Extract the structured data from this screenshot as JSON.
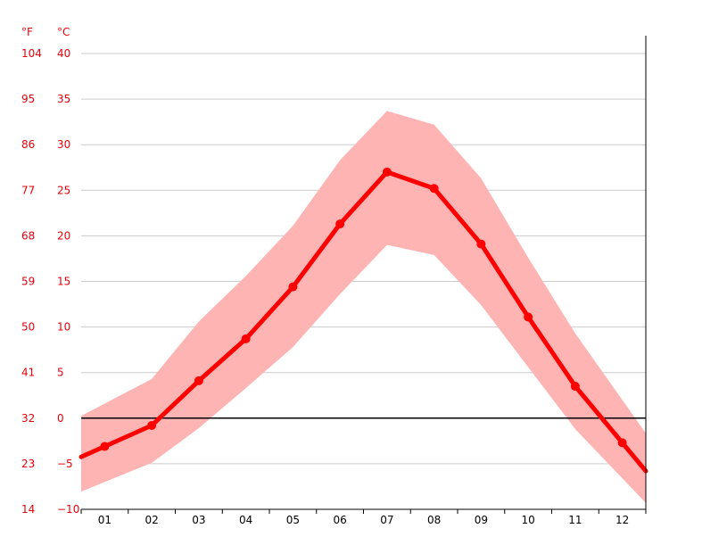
{
  "colors": {
    "line": "#ff0000",
    "band": "#ffb4b4",
    "grid": "#cccccc",
    "zero_line": "#000000",
    "axis_label": "#e8000b"
  },
  "chart_data": {
    "type": "line",
    "unit_labels": {
      "fahrenheit": "°F",
      "celsius": "°C"
    },
    "categories": [
      "01",
      "02",
      "03",
      "04",
      "05",
      "06",
      "07",
      "08",
      "09",
      "10",
      "11",
      "12"
    ],
    "y_ticks_c": [
      "40",
      "35",
      "30",
      "25",
      "20",
      "15",
      "10",
      "5",
      "0",
      "−5",
      "−10"
    ],
    "y_ticks_f": [
      "104",
      "95",
      "86",
      "77",
      "68",
      "59",
      "50",
      "41",
      "32",
      "23",
      "14"
    ],
    "ylim": [
      -10,
      40
    ],
    "grid": true,
    "series": [
      {
        "role": "mean",
        "values": [
          -3.1,
          -0.8,
          4.1,
          8.7,
          14.4,
          21.3,
          27.0,
          25.2,
          19.1,
          11.1,
          3.5,
          -2.7
        ]
      },
      {
        "role": "max",
        "values": [
          1.6,
          4.3,
          10.6,
          15.6,
          21.1,
          28.3,
          33.7,
          32.2,
          26.3,
          17.6,
          9.3,
          2.0
        ]
      },
      {
        "role": "min",
        "values": [
          -7.0,
          -4.9,
          -1.1,
          3.3,
          7.8,
          13.6,
          19.0,
          17.9,
          12.4,
          5.6,
          -1.2,
          -6.6
        ]
      }
    ]
  }
}
